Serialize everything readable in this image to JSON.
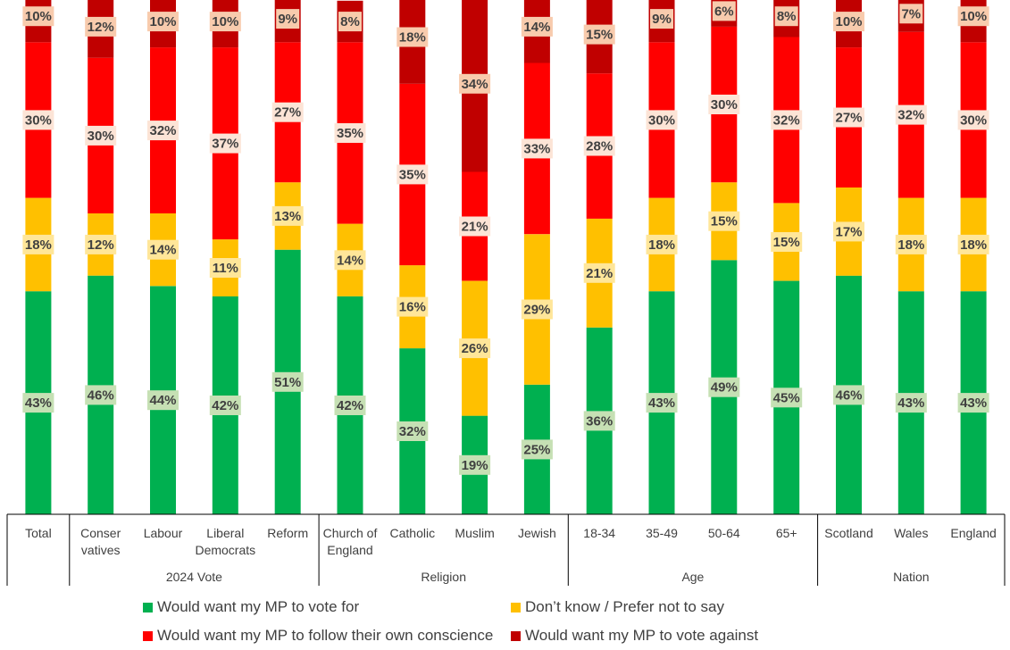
{
  "chart_data": {
    "type": "bar",
    "stacked": true,
    "categories": [
      "Total",
      "Conser vatives",
      "Labour",
      "Liberal Democrats",
      "Reform",
      "Church of England",
      "Catholic",
      "Muslim",
      "Jewish",
      "18-34",
      "35-49",
      "50-64",
      "65+",
      "Scotland",
      "Wales",
      "England"
    ],
    "category_lines": [
      [
        "Total"
      ],
      [
        "Conser",
        "vatives"
      ],
      [
        "Labour"
      ],
      [
        "Liberal",
        "Democrats"
      ],
      [
        "Reform"
      ],
      [
        "Church of",
        "England"
      ],
      [
        "Catholic"
      ],
      [
        "Muslim"
      ],
      [
        "Jewish"
      ],
      [
        "18-34"
      ],
      [
        "35-49"
      ],
      [
        "50-64"
      ],
      [
        "65+"
      ],
      [
        "Scotland"
      ],
      [
        "Wales"
      ],
      [
        "England"
      ]
    ],
    "groups": [
      {
        "label": "",
        "start": 0,
        "end": 0
      },
      {
        "label": "2024 Vote",
        "start": 1,
        "end": 4
      },
      {
        "label": "Religion",
        "start": 5,
        "end": 8
      },
      {
        "label": "Age",
        "start": 9,
        "end": 12
      },
      {
        "label": "Nation",
        "start": 13,
        "end": 15
      }
    ],
    "series": [
      {
        "name": "Would want my MP to vote for",
        "color": "#00B050",
        "label_bg": "#C6E0B4",
        "values": [
          43,
          46,
          44,
          42,
          51,
          42,
          32,
          19,
          25,
          36,
          43,
          49,
          45,
          46,
          43,
          43
        ]
      },
      {
        "name": "Don’t know / Prefer not to say",
        "color": "#FFC000",
        "label_bg": "#FFE699",
        "values": [
          18,
          12,
          14,
          11,
          13,
          14,
          16,
          26,
          29,
          21,
          18,
          15,
          15,
          17,
          18,
          18
        ]
      },
      {
        "name": "Would want my MP to follow their own conscience",
        "color": "#FF0000",
        "label_bg": "#FCE4D6",
        "values": [
          30,
          30,
          32,
          37,
          27,
          35,
          35,
          21,
          33,
          28,
          30,
          30,
          32,
          27,
          32,
          30
        ]
      },
      {
        "name": "Would want my MP to vote against",
        "color": "#C00000",
        "label_bg": "#F8CBAD",
        "values": [
          10,
          12,
          10,
          10,
          9,
          8,
          18,
          34,
          14,
          15,
          9,
          6,
          8,
          10,
          7,
          10
        ]
      }
    ],
    "value_suffix": "%",
    "ylim": [
      0,
      100
    ]
  },
  "legend": {
    "items": [
      {
        "label": "Would want my MP to vote for",
        "color": "#00B050"
      },
      {
        "label": "Don’t know / Prefer not to say",
        "color": "#FFC000"
      },
      {
        "label": "Would want my MP to follow their own conscience",
        "color": "#FF0000"
      },
      {
        "label": "Would want my MP to vote against",
        "color": "#C00000"
      }
    ]
  }
}
